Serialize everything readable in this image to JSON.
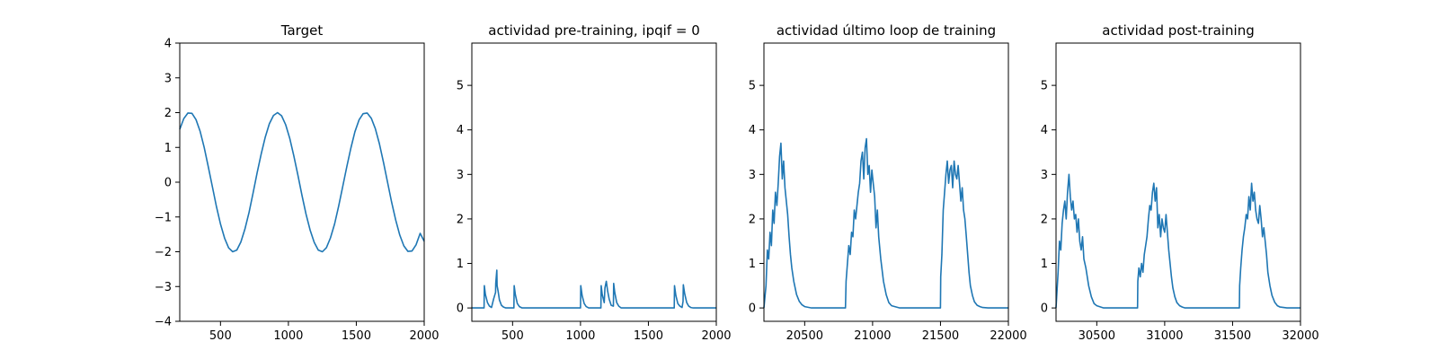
{
  "line_color": "#1f77b4",
  "chart_data": [
    {
      "type": "line",
      "title": "Target",
      "xlim": [
        200,
        2000
      ],
      "ylim": [
        -4,
        4
      ],
      "xticks": [
        500,
        1000,
        1500,
        2000
      ],
      "yticks": [
        -4,
        -3,
        -2,
        -1,
        0,
        1,
        2,
        3,
        4
      ],
      "series": [
        {
          "x": [
            200,
            230,
            260,
            290,
            320,
            350,
            380,
            410,
            440,
            470,
            500,
            530,
            560,
            590,
            620,
            650,
            680,
            710,
            740,
            770,
            800,
            830,
            860,
            890,
            920,
            950,
            980,
            1010,
            1040,
            1070,
            1100,
            1130,
            1160,
            1190,
            1220,
            1250,
            1280,
            1310,
            1340,
            1370,
            1400,
            1430,
            1460,
            1490,
            1520,
            1550,
            1580,
            1610,
            1640,
            1670,
            1700,
            1730,
            1760,
            1790,
            1820,
            1850,
            1880,
            1910,
            1940,
            1970,
            2000
          ],
          "y": [
            1.52,
            1.83,
            1.99,
            1.98,
            1.8,
            1.46,
            1.0,
            0.45,
            -0.13,
            -0.7,
            -1.2,
            -1.61,
            -1.89,
            -2.0,
            -1.95,
            -1.72,
            -1.35,
            -0.87,
            -0.31,
            0.27,
            0.82,
            1.3,
            1.68,
            1.92,
            2.0,
            1.91,
            1.65,
            1.26,
            0.76,
            0.2,
            -0.38,
            -0.92,
            -1.38,
            -1.73,
            -1.95,
            -2.0,
            -1.88,
            -1.6,
            -1.2,
            -0.69,
            -0.13,
            0.45,
            0.98,
            1.45,
            1.79,
            1.97,
            1.99,
            1.84,
            1.54,
            1.11,
            0.57,
            0.0,
            -0.57,
            -1.09,
            -1.52,
            -1.83,
            -1.99,
            -1.98,
            -1.8,
            -1.47,
            -1.7
          ]
        }
      ]
    },
    {
      "type": "line",
      "title": "actividad pre-training, ipqif = 0",
      "xlim": [
        200,
        2000
      ],
      "ylim": [
        -0.3,
        5.95
      ],
      "xticks": [
        500,
        1000,
        1500,
        2000
      ],
      "yticks": [
        0,
        1,
        2,
        3,
        4,
        5
      ],
      "series": [
        {
          "x": [
            200,
            290,
            292,
            300,
            315,
            330,
            345,
            360,
            375,
            376,
            384,
            386,
            393,
            403,
            418,
            433,
            450,
            510,
            512,
            520,
            535,
            550,
            570,
            1000,
            1002,
            1012,
            1027,
            1042,
            1060,
            1150,
            1152,
            1160,
            1175,
            1180,
            1190,
            1200,
            1211,
            1226,
            1242,
            1244,
            1252,
            1267,
            1282,
            1300,
            1690,
            1692,
            1702,
            1717,
            1732,
            1748,
            1755,
            1757,
            1767,
            1782,
            1797,
            1812,
            1830,
            2000
          ],
          "y": [
            0,
            0,
            0.5,
            0.3,
            0.12,
            0.04,
            0.01,
            0.2,
            0.35,
            0.55,
            0.85,
            0.5,
            0.38,
            0.18,
            0.06,
            0.02,
            0,
            0,
            0.5,
            0.3,
            0.1,
            0.03,
            0,
            0,
            0.5,
            0.28,
            0.1,
            0.03,
            0,
            0,
            0.5,
            0.3,
            0.12,
            0.45,
            0.6,
            0.38,
            0.2,
            0.06,
            0.04,
            0.55,
            0.35,
            0.12,
            0.04,
            0,
            0,
            0.5,
            0.28,
            0.1,
            0.04,
            0.01,
            0.15,
            0.52,
            0.32,
            0.12,
            0.04,
            0.01,
            0,
            0
          ]
        }
      ]
    },
    {
      "type": "line",
      "title": "actividad último loop de training",
      "xlim": [
        20200,
        22000
      ],
      "ylim": [
        -0.3,
        5.95
      ],
      "xticks": [
        20500,
        21000,
        21500,
        22000
      ],
      "yticks": [
        0,
        1,
        2,
        3,
        4,
        5
      ],
      "series": [
        {
          "x": [
            20200,
            20215,
            20225,
            20235,
            20245,
            20255,
            20265,
            20275,
            20285,
            20295,
            20305,
            20315,
            20325,
            20335,
            20345,
            20355,
            20365,
            20375,
            20385,
            20395,
            20405,
            20420,
            20440,
            20460,
            20480,
            20500,
            20550,
            20600,
            20700,
            20800,
            20805,
            20815,
            20825,
            20835,
            20845,
            20855,
            20865,
            20875,
            20885,
            20895,
            20905,
            20915,
            20925,
            20935,
            20945,
            20955,
            20965,
            20975,
            20985,
            20995,
            21005,
            21015,
            21025,
            21035,
            21045,
            21060,
            21080,
            21100,
            21120,
            21140,
            21200,
            21300,
            21400,
            21500,
            21502,
            21510,
            21520,
            21530,
            21540,
            21550,
            21560,
            21570,
            21580,
            21590,
            21600,
            21610,
            21620,
            21630,
            21640,
            21650,
            21660,
            21670,
            21680,
            21690,
            21700,
            21710,
            21720,
            21735,
            21750,
            21770,
            21790,
            21810,
            21850,
            21900,
            22000
          ],
          "y": [
            0,
            0.5,
            1.3,
            1.1,
            1.7,
            1.4,
            2.2,
            1.9,
            2.6,
            2.3,
            2.8,
            3.4,
            3.7,
            2.9,
            3.3,
            2.7,
            2.4,
            2.1,
            1.6,
            1.2,
            0.9,
            0.6,
            0.3,
            0.15,
            0.07,
            0.03,
            0,
            0,
            0,
            0,
            0.6,
            1.0,
            1.4,
            1.2,
            1.7,
            1.6,
            2.2,
            2.0,
            2.3,
            2.6,
            2.8,
            3.3,
            3.5,
            2.9,
            3.6,
            3.8,
            3.0,
            3.2,
            2.6,
            3.1,
            2.8,
            2.5,
            1.8,
            2.2,
            1.6,
            1.1,
            0.6,
            0.3,
            0.12,
            0.05,
            0,
            0,
            0,
            0,
            0.7,
            1.2,
            2.2,
            2.6,
            3.0,
            3.3,
            2.8,
            3.1,
            3.2,
            2.7,
            3.3,
            3.0,
            2.9,
            3.2,
            2.8,
            2.4,
            2.7,
            2.2,
            2.0,
            1.6,
            1.2,
            0.8,
            0.5,
            0.28,
            0.14,
            0.06,
            0.03,
            0.01,
            0,
            0,
            0
          ]
        }
      ]
    },
    {
      "type": "line",
      "title": "actividad post-training",
      "xlim": [
        30200,
        32000
      ],
      "ylim": [
        -0.3,
        5.95
      ],
      "xticks": [
        30500,
        31000,
        31500,
        32000
      ],
      "yticks": [
        0,
        1,
        2,
        3,
        4,
        5
      ],
      "series": [
        {
          "x": [
            30200,
            30215,
            30225,
            30235,
            30245,
            30255,
            30265,
            30275,
            30285,
            30295,
            30305,
            30315,
            30325,
            30335,
            30345,
            30355,
            30365,
            30375,
            30385,
            30395,
            30405,
            30420,
            30440,
            30460,
            30480,
            30500,
            30550,
            30600,
            30700,
            30800,
            30802,
            30810,
            30820,
            30830,
            30840,
            30850,
            30860,
            30870,
            30880,
            30890,
            30900,
            30910,
            30920,
            30930,
            30940,
            30950,
            30960,
            30970,
            30980,
            30990,
            31000,
            31010,
            31020,
            31030,
            31040,
            31050,
            31060,
            31075,
            31090,
            31110,
            31130,
            31150,
            31200,
            31300,
            31400,
            31500,
            31550,
            31552,
            31560,
            31570,
            31580,
            31590,
            31600,
            31610,
            31620,
            31630,
            31640,
            31650,
            31660,
            31670,
            31680,
            31690,
            31700,
            31710,
            31720,
            31730,
            31740,
            31750,
            31760,
            31775,
            31790,
            31810,
            31830,
            31850,
            31900,
            32000
          ],
          "y": [
            0,
            0.8,
            1.5,
            1.3,
            1.9,
            2.2,
            2.4,
            2.0,
            2.6,
            3.0,
            2.5,
            2.2,
            2.4,
            2.0,
            2.1,
            1.7,
            2.0,
            1.5,
            1.3,
            1.6,
            1.1,
            0.9,
            0.5,
            0.25,
            0.1,
            0.05,
            0,
            0,
            0,
            0,
            0.6,
            0.9,
            0.7,
            1.0,
            0.8,
            1.2,
            1.4,
            1.6,
            2.0,
            2.3,
            2.2,
            2.6,
            2.8,
            2.4,
            2.7,
            1.8,
            2.1,
            1.6,
            2.0,
            1.8,
            1.7,
            2.1,
            1.7,
            1.3,
            1.0,
            0.7,
            0.45,
            0.25,
            0.12,
            0.05,
            0.02,
            0,
            0,
            0,
            0,
            0,
            0,
            0.5,
            0.9,
            1.3,
            1.6,
            1.8,
            2.1,
            2.0,
            2.5,
            2.2,
            2.8,
            2.4,
            2.6,
            2.2,
            2.0,
            1.9,
            2.3,
            2.0,
            1.6,
            1.8,
            1.5,
            1.2,
            0.8,
            0.5,
            0.28,
            0.13,
            0.05,
            0.02,
            0,
            0
          ]
        }
      ]
    }
  ]
}
